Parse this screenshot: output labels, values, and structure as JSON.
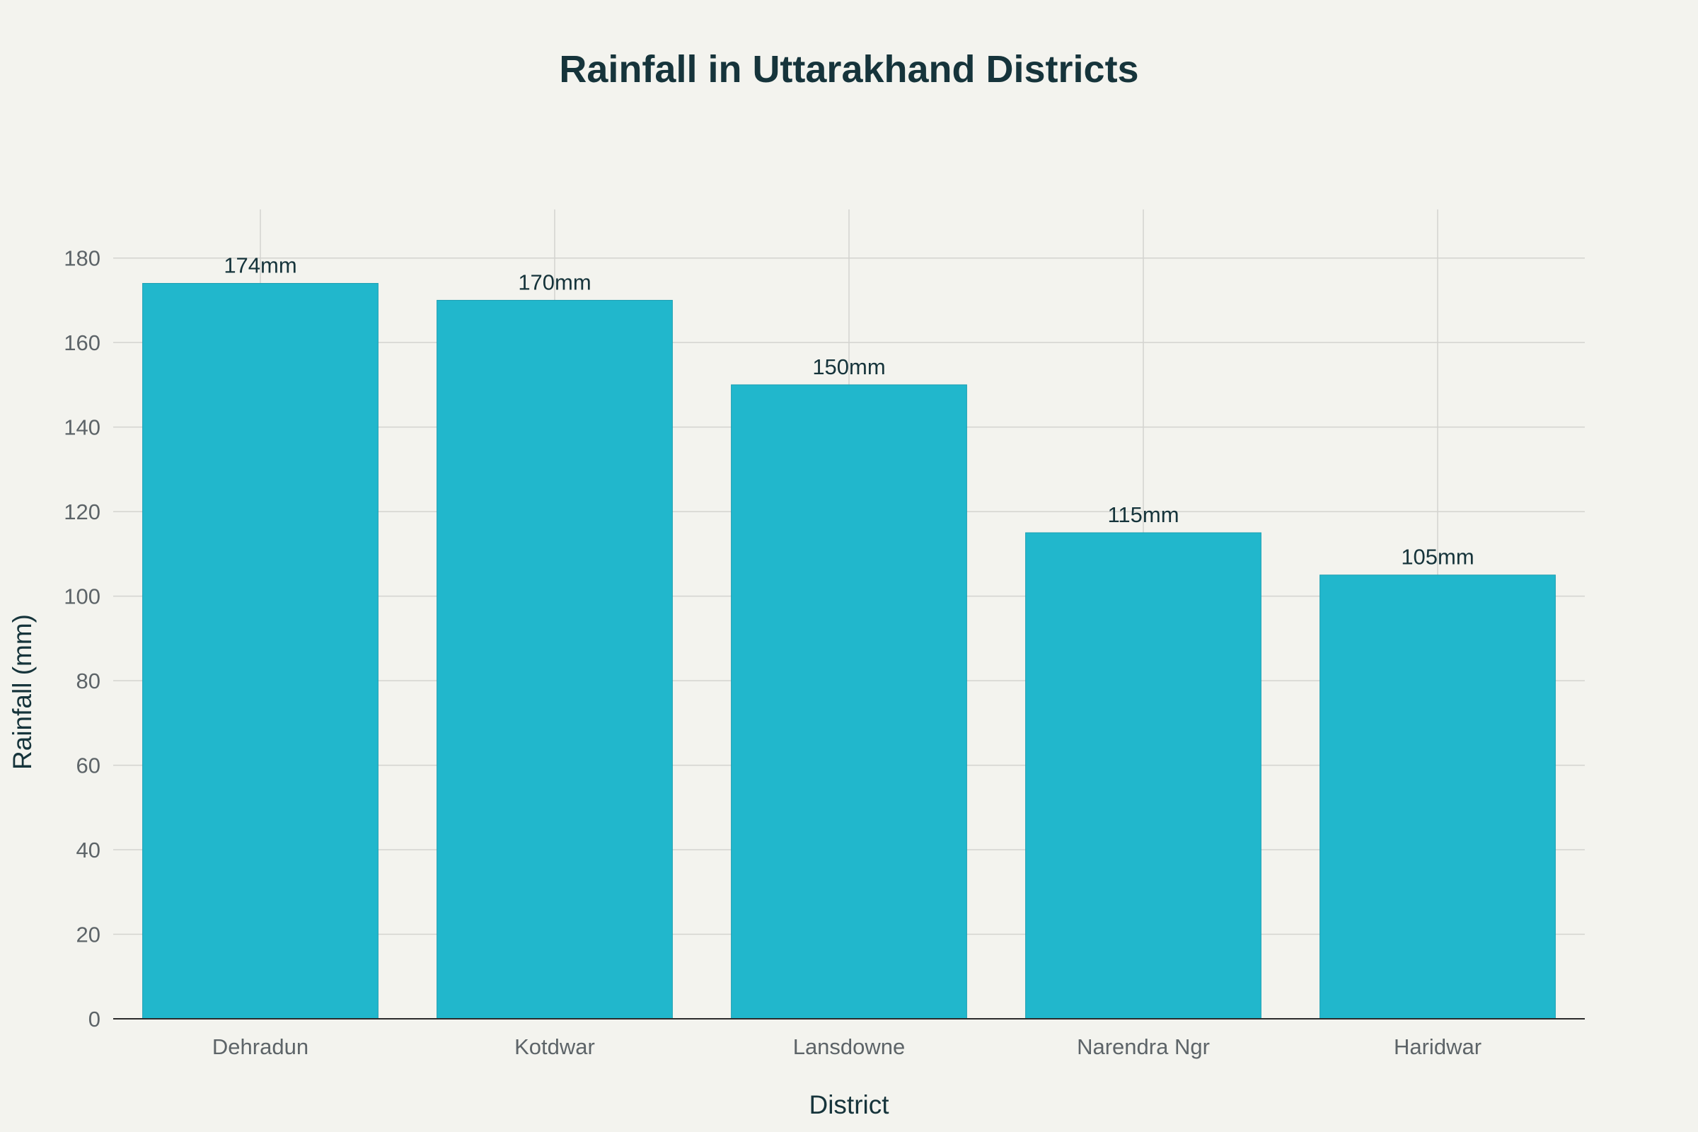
{
  "chart_data": {
    "type": "bar",
    "title": "Rainfall in Uttarakhand Districts",
    "xlabel": "District",
    "ylabel": "Rainfall (mm)",
    "categories": [
      "Dehradun",
      "Kotdwar",
      "Lansdowne",
      "Narendra Ngr",
      "Haridwar"
    ],
    "values": [
      174,
      170,
      150,
      115,
      105
    ],
    "data_labels": [
      "174mm",
      "170mm",
      "150mm",
      "115mm",
      "105mm"
    ],
    "yticks": [
      0,
      20,
      40,
      60,
      80,
      100,
      120,
      140,
      160,
      180
    ],
    "ylim": [
      0,
      191.5
    ],
    "grid": true,
    "legend": "none",
    "bar_color": "#21b7cc",
    "background_color": "#f3f3ee"
  }
}
